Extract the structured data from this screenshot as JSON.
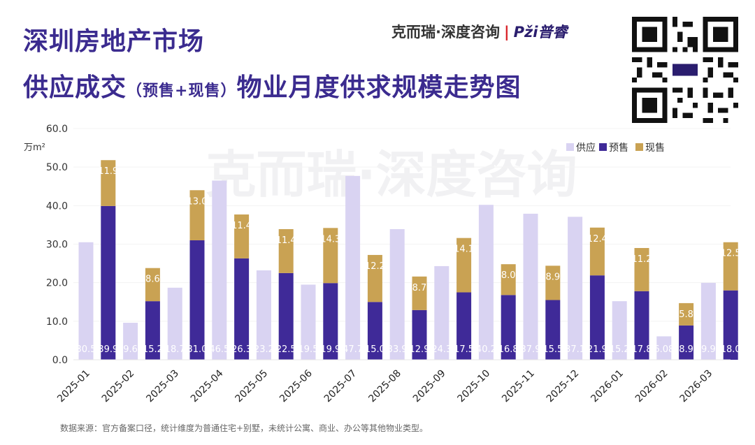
{
  "header": {
    "title_line1": "深圳房地产市场",
    "title_line2_main": "供应成交",
    "title_line2_paren": "（预售+现售）",
    "title_line2_tail": "物业月度供求规模走势图",
    "brand_name": "克而瑞·深度咨询",
    "brand_sep": "|",
    "brand_logo": "Pži普睿"
  },
  "watermark": "克而瑞·深度咨询",
  "footer": {
    "note": "数据来源：官方备案口径，统计维度为普通住宅+别墅，未统计公寓、商业、办公等其他物业类型。"
  },
  "colors": {
    "supply": "#d9d3f2",
    "presale": "#3f2a98",
    "spot": "#c9a253",
    "title": "#3b2b8f"
  },
  "chart_data": {
    "type": "bar",
    "ylabel": "万m²",
    "ylim": [
      0,
      60
    ],
    "yticks": [
      "0.0",
      "10.0",
      "20.0",
      "30.0",
      "40.0",
      "50.0",
      "60.0"
    ],
    "legend": [
      "供应",
      "预售",
      "现售"
    ],
    "categories": [
      "2025-01",
      "2025-02",
      "2025-03",
      "2025-04",
      "2025-05",
      "2025-06",
      "2025-07",
      "2025-08",
      "2025-09",
      "2025-10",
      "2025-11",
      "2025-12",
      "2026-01",
      "2026-02",
      "2026-03"
    ],
    "series": [
      {
        "name": "供应",
        "values": [
          30.5,
          9.6,
          18.7,
          46.5,
          23.2,
          19.5,
          47.7,
          33.9,
          24.3,
          40.2,
          37.9,
          37.1,
          15.2,
          6.08,
          19.97
        ],
        "labels": [
          "30.5",
          "9.6",
          "18.7",
          "46.5",
          "23.2",
          "19.5",
          "47.7",
          "33.9",
          "24.3",
          "40.2",
          "37.9",
          "37.1",
          "15.2",
          "6.08",
          "19.97"
        ]
      },
      {
        "name": "预售",
        "values": [
          39.9,
          15.2,
          31.0,
          26.3,
          22.5,
          19.9,
          15.0,
          12.9,
          17.5,
          16.8,
          15.5,
          21.9,
          17.8,
          8.9,
          18.0
        ],
        "labels": [
          "39.9",
          "15.2",
          "31.0",
          "26.3",
          "22.5",
          "19.9",
          "15.0",
          "12.9",
          "17.5",
          "16.8",
          "15.5",
          "21.9",
          "17.8",
          "8.9",
          "18.0"
        ]
      },
      {
        "name": "现售",
        "values": [
          11.9,
          8.6,
          13.0,
          11.4,
          11.4,
          14.3,
          12.2,
          8.7,
          14.1,
          8.0,
          8.9,
          12.4,
          11.2,
          5.8,
          12.5
        ],
        "labels": [
          "11.9",
          "8.6",
          "13.0",
          "11.4",
          "11.4",
          "14.3",
          "12.2",
          "8.7",
          "14.1",
          "8.0",
          "8.9",
          "12.4",
          "11.2",
          "5.8",
          "12.5"
        ]
      }
    ]
  }
}
